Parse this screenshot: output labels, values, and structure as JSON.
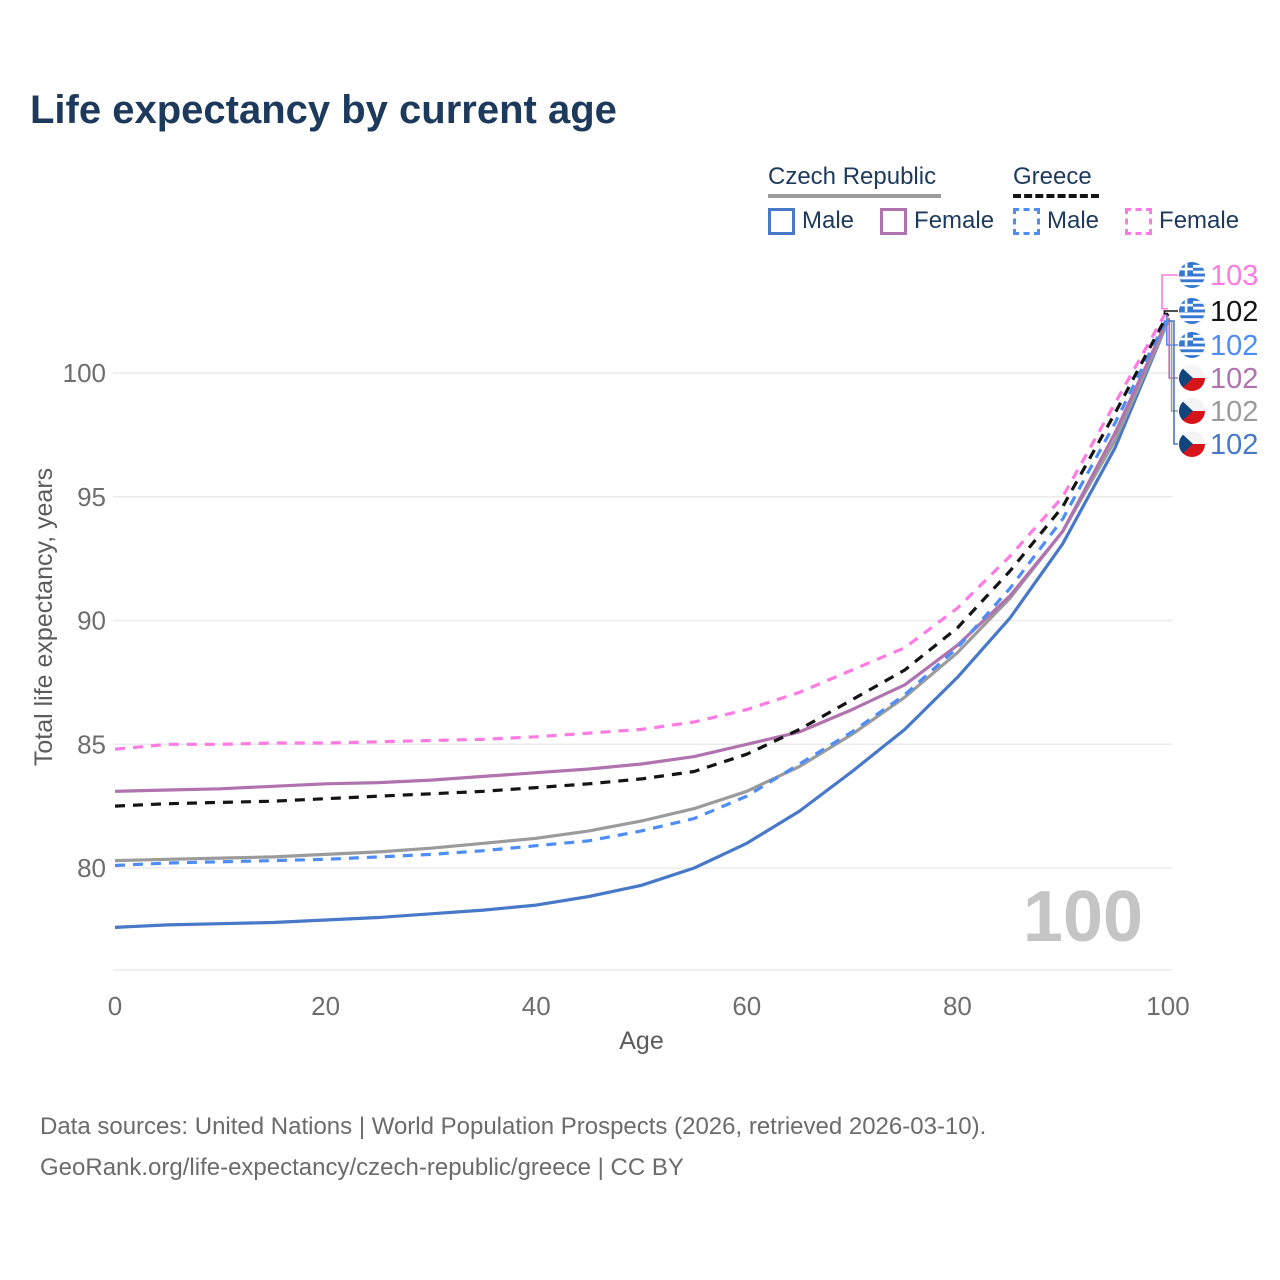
{
  "title": "Life expectancy by current age",
  "legend": {
    "groups": [
      {
        "label": "Czech Republic",
        "underline_style": "solid",
        "underline_color": "#9b9b9b",
        "items": [
          {
            "label": "Male"
          },
          {
            "label": "Female"
          }
        ]
      },
      {
        "label": "Greece",
        "underline_style": "dashed",
        "underline_color": "#141414",
        "items": [
          {
            "label": "Male"
          },
          {
            "label": "Female"
          }
        ]
      }
    ]
  },
  "watermark": "100",
  "footer": {
    "line1": "Data sources: United Nations | World Population Prospects (2026, retrieved 2026-03-10).",
    "line2": "GeoRank.org/life-expectancy/czech-republic/greece | CC BY"
  },
  "chart_data": {
    "type": "line",
    "title": "Life expectancy by current age",
    "xlabel": "Age",
    "ylabel": "Total life expectancy, years",
    "xlim": [
      0,
      100
    ],
    "ylim": [
      76,
      104
    ],
    "x_ticks": [
      0,
      20,
      40,
      60,
      80,
      100
    ],
    "y_ticks": [
      80,
      85,
      90,
      95,
      100
    ],
    "grid": true,
    "legend_position": "top-right",
    "x": [
      0,
      5,
      10,
      15,
      20,
      25,
      30,
      35,
      40,
      45,
      50,
      55,
      60,
      65,
      70,
      75,
      80,
      85,
      90,
      95,
      100
    ],
    "series": [
      {
        "name": "Czech Republic Male",
        "country": "Czech Republic",
        "sex": "Male",
        "color": "#4878c8",
        "dash": false,
        "values": [
          77.6,
          77.7,
          77.75,
          77.8,
          77.9,
          78.0,
          78.15,
          78.3,
          78.5,
          78.85,
          79.3,
          80.0,
          81.0,
          82.3,
          83.9,
          85.6,
          87.7,
          90.1,
          93.1,
          97.0,
          102.1
        ]
      },
      {
        "name": "Czech Republic (both sexes)",
        "country": "Czech Republic",
        "sex": "Total",
        "color": "#9b9b9b",
        "dash": false,
        "values": [
          80.3,
          80.35,
          80.4,
          80.45,
          80.55,
          80.65,
          80.8,
          81.0,
          81.2,
          81.5,
          81.9,
          82.4,
          83.1,
          84.1,
          85.4,
          86.9,
          88.7,
          90.9,
          93.6,
          97.3,
          102.1
        ]
      },
      {
        "name": "Czech Republic Female",
        "country": "Czech Republic",
        "sex": "Female",
        "color": "#b073ae",
        "dash": false,
        "values": [
          83.1,
          83.15,
          83.2,
          83.3,
          83.4,
          83.45,
          83.55,
          83.7,
          83.85,
          84.0,
          84.2,
          84.5,
          85.0,
          85.5,
          86.4,
          87.4,
          89.0,
          91.0,
          93.6,
          97.6,
          102.2
        ]
      },
      {
        "name": "Greece Male",
        "country": "Greece",
        "sex": "Male",
        "color": "#4e8df5",
        "dash": true,
        "values": [
          80.1,
          80.2,
          80.25,
          80.3,
          80.35,
          80.45,
          80.55,
          80.7,
          80.9,
          81.1,
          81.5,
          82.0,
          82.9,
          84.2,
          85.5,
          87.0,
          88.9,
          91.3,
          94.1,
          98.0,
          102.3
        ]
      },
      {
        "name": "Greece (both sexes)",
        "country": "Greece",
        "sex": "Total",
        "color": "#141414",
        "dash": true,
        "values": [
          82.5,
          82.6,
          82.65,
          82.7,
          82.8,
          82.9,
          83.0,
          83.1,
          83.25,
          83.4,
          83.6,
          83.9,
          84.6,
          85.6,
          86.8,
          88.0,
          89.7,
          92.0,
          94.6,
          98.4,
          102.4
        ]
      },
      {
        "name": "Greece Female",
        "country": "Greece",
        "sex": "Female",
        "color": "#ff7ae1",
        "dash": true,
        "values": [
          84.8,
          85.0,
          85.0,
          85.05,
          85.05,
          85.1,
          85.15,
          85.2,
          85.3,
          85.45,
          85.6,
          85.9,
          86.4,
          87.1,
          88.0,
          88.9,
          90.5,
          92.6,
          95.0,
          98.8,
          102.6
        ]
      }
    ],
    "end_labels": [
      {
        "series": 5,
        "text": "103",
        "flag": "greece"
      },
      {
        "series": 4,
        "text": "102",
        "flag": "greece"
      },
      {
        "series": 3,
        "text": "102",
        "flag": "greece"
      },
      {
        "series": 2,
        "text": "102",
        "flag": "czech"
      },
      {
        "series": 1,
        "text": "102",
        "flag": "czech"
      },
      {
        "series": 0,
        "text": "102",
        "flag": "czech"
      }
    ]
  }
}
